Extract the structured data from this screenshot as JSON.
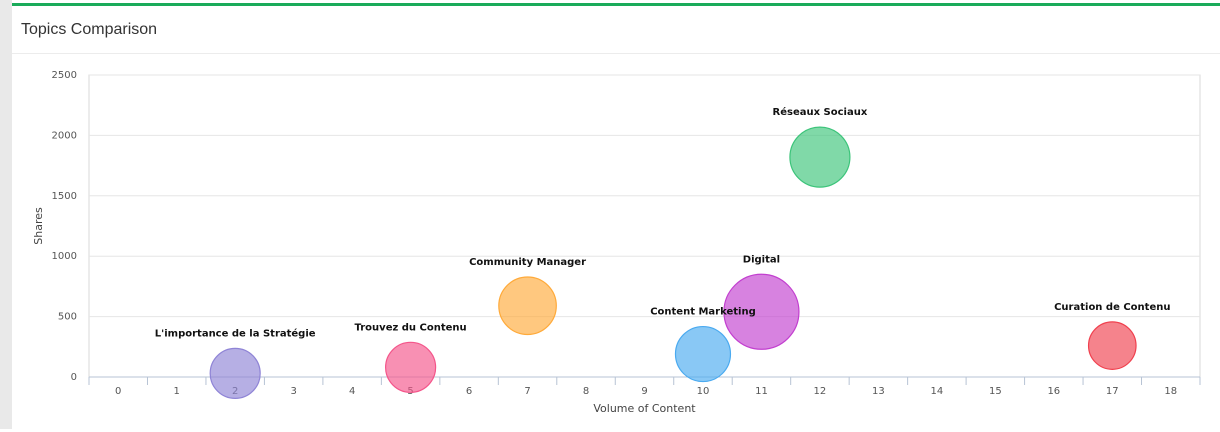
{
  "panel": {
    "title": "Topics Comparison",
    "accent_color": "#1aab5a"
  },
  "chart_data": {
    "type": "bubble",
    "title": "",
    "xlabel": "Volume of Content",
    "ylabel": "Shares",
    "xlim": [
      -0.5,
      18.5
    ],
    "ylim": [
      0,
      2500
    ],
    "x_ticks": [
      0,
      1,
      2,
      3,
      4,
      5,
      6,
      7,
      8,
      9,
      10,
      11,
      12,
      13,
      14,
      15,
      16,
      17,
      18
    ],
    "y_ticks": [
      0,
      500,
      1000,
      1500,
      2000,
      2500
    ],
    "grid": true,
    "points": [
      {
        "label": "L'importance de la Stratégie",
        "x": 2,
        "y": 30,
        "size": 1.0,
        "color": "#8f84d6"
      },
      {
        "label": "Trouvez du Contenu",
        "x": 5,
        "y": 80,
        "size": 1.0,
        "color": "#f4558a"
      },
      {
        "label": "Community Manager",
        "x": 7,
        "y": 590,
        "size": 1.15,
        "color": "#ffaa3a"
      },
      {
        "label": "Content Marketing",
        "x": 10,
        "y": 190,
        "size": 1.1,
        "color": "#4aaaf0"
      },
      {
        "label": "Digital",
        "x": 11,
        "y": 540,
        "size": 1.5,
        "color": "#c23fcf"
      },
      {
        "label": "Réseaux Sociaux",
        "x": 12,
        "y": 1820,
        "size": 1.2,
        "color": "#3cc47a"
      },
      {
        "label": "Curation de Contenu",
        "x": 17,
        "y": 260,
        "size": 0.95,
        "color": "#f0404e"
      }
    ]
  }
}
